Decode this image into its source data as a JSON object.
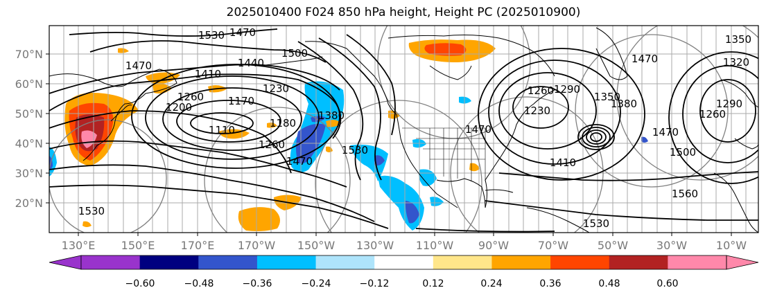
{
  "title": "2025010400 F024 850 hPa height, Height PC (2025010900)",
  "lat_labels": [
    "70°N",
    "60°N",
    "50°N",
    "40°N",
    "30°N",
    "20°N"
  ],
  "lon_labels": [
    "130°E",
    "150°E",
    "170°E",
    "170°W",
    "150°W",
    "130°W",
    "110°W",
    "90°W",
    "70°W",
    "50°W",
    "30°W",
    "10°W"
  ],
  "contour_labels": [
    "1470",
    "1530",
    "1500",
    "1440",
    "1470",
    "1410",
    "1230",
    "1260",
    "1200",
    "1170",
    "1110",
    "1180",
    "1260",
    "1380",
    "1470",
    "1530",
    "1230",
    "1260",
    "1290",
    "1350",
    "1380",
    "1410",
    "1470",
    "1500",
    "1560",
    "1530",
    "1350",
    "1320",
    "1290",
    "1260",
    "1530",
    "1470",
    "1470"
  ],
  "colorbar": {
    "ticks": [
      "−0.60",
      "−0.48",
      "−0.36",
      "−0.24",
      "−0.12",
      "0.12",
      "0.24",
      "0.36",
      "0.48",
      "0.60"
    ],
    "colors": [
      "#9933cc",
      "#000080",
      "#3355cc",
      "#00bfff",
      "#aee4fb",
      "#ffffff",
      "#ffe68a",
      "#ffa500",
      "#ff4500",
      "#b22222",
      "#ff88aa",
      "#ff88aa"
    ],
    "under_color": "#9933cc",
    "over_color": "#ff88aa"
  },
  "colors": {
    "contour": "#000000",
    "grid": "#aaaaaa",
    "great_circle": "#808080",
    "coast": "#000000"
  }
}
